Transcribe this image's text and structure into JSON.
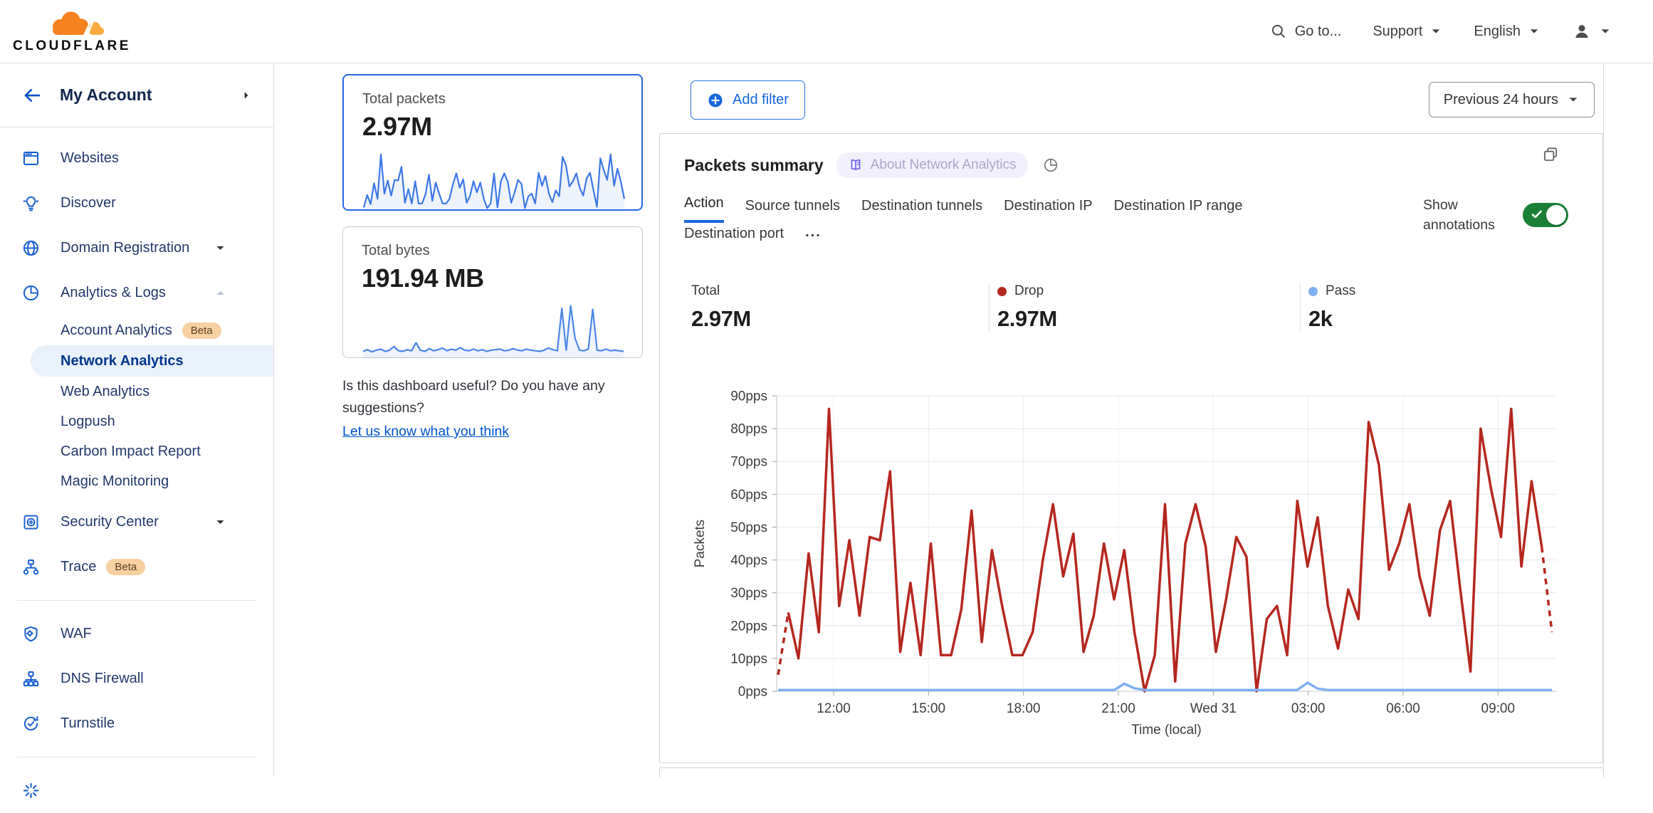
{
  "topbar": {
    "logo_text": "CLOUDFLARE",
    "search_label": "Go to...",
    "support_label": "Support",
    "language_label": "English"
  },
  "sidebar": {
    "account_label": "My Account",
    "beta_label": "Beta",
    "items": [
      {
        "label": "Websites",
        "icon": "browser",
        "type": "top"
      },
      {
        "label": "Discover",
        "icon": "bulb",
        "type": "top"
      },
      {
        "label": "Domain Registration",
        "icon": "globe",
        "type": "top",
        "caret": "down"
      },
      {
        "label": "Analytics & Logs",
        "icon": "pie",
        "type": "top",
        "caret": "up",
        "caret_muted": true
      },
      {
        "label": "Account Analytics",
        "type": "sub",
        "beta": true
      },
      {
        "label": "Network Analytics",
        "type": "sub",
        "selected": true
      },
      {
        "label": "Web Analytics",
        "type": "sub"
      },
      {
        "label": "Logpush",
        "type": "sub"
      },
      {
        "label": "Carbon Impact Report",
        "type": "sub"
      },
      {
        "label": "Magic Monitoring",
        "type": "sub"
      },
      {
        "label": "Security Center",
        "icon": "vault",
        "type": "top",
        "caret": "down",
        "gap": true
      },
      {
        "label": "Trace",
        "icon": "trace",
        "type": "top",
        "beta": true
      },
      {
        "type": "divider"
      },
      {
        "label": "WAF",
        "icon": "shield-gear",
        "type": "top"
      },
      {
        "label": "DNS Firewall",
        "icon": "hierarchy",
        "type": "top"
      },
      {
        "label": "Turnstile",
        "icon": "refresh-check",
        "type": "top"
      },
      {
        "type": "divider"
      },
      {
        "label": "",
        "icon": "sparkle",
        "type": "top",
        "partial": true
      }
    ]
  },
  "metric_cards": {
    "packets": {
      "label": "Total packets",
      "value": "2.97M",
      "spark": [
        5,
        24,
        10,
        42,
        18,
        86,
        26,
        46,
        23,
        47,
        46,
        67,
        12,
        33,
        11,
        45,
        11,
        11,
        25,
        55,
        15,
        43,
        26,
        11,
        11,
        18,
        40,
        57,
        35,
        48,
        12,
        23,
        45,
        28,
        43,
        18,
        4,
        11,
        57,
        5,
        45,
        57,
        44,
        12,
        28,
        47,
        41,
        4,
        22,
        26,
        11,
        58,
        38,
        53,
        26,
        13,
        31,
        22,
        82,
        69,
        37,
        45,
        57,
        35,
        23,
        49,
        58,
        31,
        6,
        80,
        62,
        47,
        86,
        38,
        64,
        44,
        18
      ]
    },
    "bytes": {
      "label": "Total bytes",
      "value": "191.94 MB",
      "spark": [
        10,
        13,
        9,
        12,
        14,
        10,
        12,
        19,
        11,
        10,
        13,
        11,
        26,
        12,
        10,
        15,
        11,
        13,
        16,
        11,
        14,
        12,
        17,
        12,
        11,
        14,
        11,
        13,
        10,
        12,
        13,
        14,
        11,
        12,
        15,
        12,
        11,
        14,
        12,
        11,
        10,
        12,
        16,
        13,
        11,
        90,
        12,
        95,
        34,
        12,
        11,
        14,
        88,
        12,
        11,
        14,
        11,
        12,
        11,
        10
      ]
    }
  },
  "feedback": {
    "question": "Is this dashboard useful? Do you have any suggestions?",
    "link": "Let us know what you think"
  },
  "main": {
    "add_filter_label": "Add filter",
    "time_range_label": "Previous 24 hours",
    "panel": {
      "title": "Packets summary",
      "about_badge": "About Network Analytics",
      "active_tab": "Action",
      "tabs_row1": [
        "Action",
        "Source tunnels",
        "Destination tunnels",
        "Destination IP",
        "Destination IP range"
      ],
      "tabs_row2": [
        "Destination port"
      ],
      "more_tabs_label": "...",
      "show_annotations_label": "Show annotations",
      "stats": [
        {
          "label": "Total",
          "value": "2.97M",
          "dot": null
        },
        {
          "label": "Drop",
          "value": "2.97M",
          "dot": "#b5271e"
        },
        {
          "label": "Pass",
          "value": "2k",
          "dot": "#7fb0f2"
        }
      ]
    }
  },
  "chart_data": {
    "type": "line",
    "title": "Packets summary",
    "xlabel": "Time (local)",
    "ylabel": "Packets",
    "ylim": [
      0,
      90
    ],
    "grid": true,
    "legend_position": "none",
    "x_ticks": [
      "12:00",
      "15:00",
      "18:00",
      "21:00",
      "Wed 31",
      "03:00",
      "06:00",
      "09:00"
    ],
    "y_ticks": [
      "0pps",
      "10pps",
      "20pps",
      "30pps",
      "40pps",
      "50pps",
      "60pps",
      "70pps",
      "80pps",
      "90pps"
    ],
    "series": [
      {
        "name": "Drop",
        "color": "#b5271e",
        "style": "solid",
        "dashed_start_points": 2,
        "dashed_end_points": 2,
        "values": [
          5,
          24,
          10,
          42,
          18,
          86,
          26,
          46,
          23,
          47,
          46,
          67,
          12,
          33,
          11,
          45,
          11,
          11,
          25,
          55,
          15,
          43,
          26,
          11,
          11,
          18,
          40,
          57,
          35,
          48,
          12,
          23,
          45,
          28,
          43,
          18,
          0,
          11,
          57,
          3,
          45,
          57,
          44,
          12,
          28,
          47,
          41,
          0,
          22,
          26,
          11,
          58,
          38,
          53,
          26,
          13,
          31,
          22,
          82,
          69,
          37,
          45,
          57,
          35,
          23,
          49,
          58,
          31,
          6,
          80,
          62,
          47,
          86,
          38,
          64,
          44,
          18
        ]
      },
      {
        "name": "Pass",
        "color": "#7fb0f2",
        "style": "solid",
        "values": [
          0.4,
          0.4,
          0.4,
          0.4,
          0.4,
          0.4,
          0.4,
          0.4,
          0.4,
          0.4,
          0.4,
          0.4,
          0.4,
          0.4,
          0.4,
          0.4,
          0.4,
          0.4,
          0.4,
          0.4,
          0.4,
          0.4,
          0.4,
          0.4,
          0.4,
          0.4,
          0.4,
          0.4,
          0.4,
          0.4,
          0.4,
          0.4,
          0.4,
          0.4,
          2.3,
          0.9,
          0.4,
          0.4,
          0.4,
          0.4,
          0.4,
          0.4,
          0.4,
          0.4,
          0.4,
          0.4,
          0.4,
          0.4,
          0.4,
          0.4,
          0.4,
          0.4,
          2.6,
          0.8,
          0.4,
          0.4,
          0.4,
          0.4,
          0.4,
          0.4,
          0.4,
          0.4,
          0.4,
          0.4,
          0.4,
          0.4,
          0.4,
          0.4,
          0.4,
          0.4,
          0.4,
          0.4,
          0.4,
          0.4,
          0.4,
          0.4,
          0.4
        ]
      }
    ]
  },
  "colors": {
    "accent": "#1667dd",
    "link": "#0055cc",
    "nav_text": "#21386b",
    "nav_icon": "#1b62d1",
    "selected_bg": "#e9f1fb",
    "selected_text": "#00368c",
    "beta_bg": "#f9d0a2",
    "drop": "#b5271e",
    "pass": "#7fb0f2",
    "toggle_green": "#1a8038",
    "badge_bg": "#f2f0fd",
    "badge_icon": "#6b5ce7",
    "logo_orange": "#F6821F",
    "logo_light_orange": "#FBAD41"
  }
}
